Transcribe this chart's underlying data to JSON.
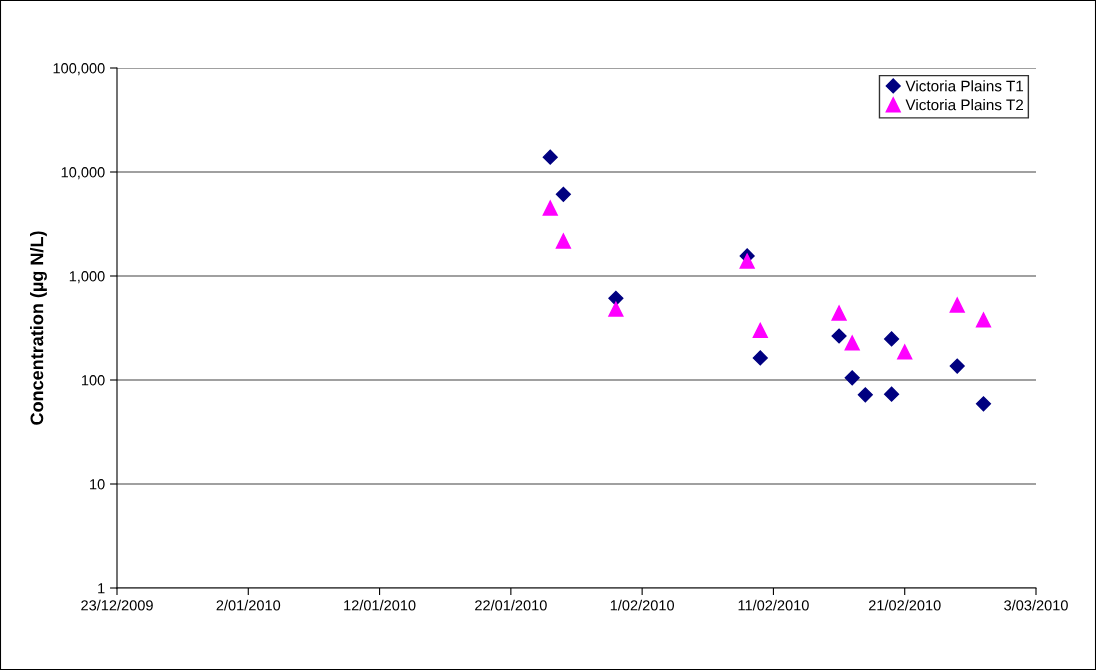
{
  "chart_data": {
    "type": "scatter",
    "ylabel": "Concentration (µg N/L)",
    "log": "y",
    "grid": "y",
    "legend": "top right",
    "xlim": [
      "2009-12-23",
      "2010-03-03"
    ],
    "xticks": [
      {
        "value": "2009-12-23",
        "label": "23/12/2009"
      },
      {
        "value": "2010-01-02",
        "label": "2/01/2010"
      },
      {
        "value": "2010-01-12",
        "label": "12/01/2010"
      },
      {
        "value": "2010-01-22",
        "label": "22/01/2010"
      },
      {
        "value": "2010-02-01",
        "label": "1/02/2010"
      },
      {
        "value": "2010-02-11",
        "label": "11/02/2010"
      },
      {
        "value": "2010-02-21",
        "label": "21/02/2010"
      },
      {
        "value": "2010-03-03",
        "label": "3/03/2010"
      }
    ],
    "ylim": [
      1,
      100000
    ],
    "yticks": [
      1,
      10,
      {
        "value": 100,
        "label": "100"
      },
      {
        "value": 1000,
        "label": "1,000"
      },
      {
        "value": 10000,
        "label": "10,000"
      },
      {
        "value": 100000,
        "label": "100,000"
      }
    ],
    "series": [
      {
        "name": "Victoria Plains T1",
        "color": "#000080",
        "marker": "diamond",
        "x": [
          "2010-01-25",
          "2010-01-26",
          "2010-01-30",
          "2010-02-09",
          "2010-02-10",
          "2010-02-16",
          "2010-02-17",
          "2010-02-18",
          "2010-02-20",
          "2010-02-20",
          "2010-02-25",
          "2010-02-27"
        ],
        "values": [
          13900,
          6100,
          610,
          1560,
          163,
          265,
          105,
          72,
          248,
          73,
          136,
          59
        ]
      },
      {
        "name": "Victoria Plains T2",
        "color": "#ff00ff",
        "marker": "triangle",
        "x": [
          "2010-01-25",
          "2010-01-26",
          "2010-01-30",
          "2010-02-09",
          "2010-02-10",
          "2010-02-16",
          "2010-02-17",
          "2010-02-21",
          "2010-02-25",
          "2010-02-27"
        ],
        "values": [
          4500,
          2170,
          480,
          1390,
          300,
          440,
          227,
          186,
          525,
          378
        ]
      }
    ]
  }
}
